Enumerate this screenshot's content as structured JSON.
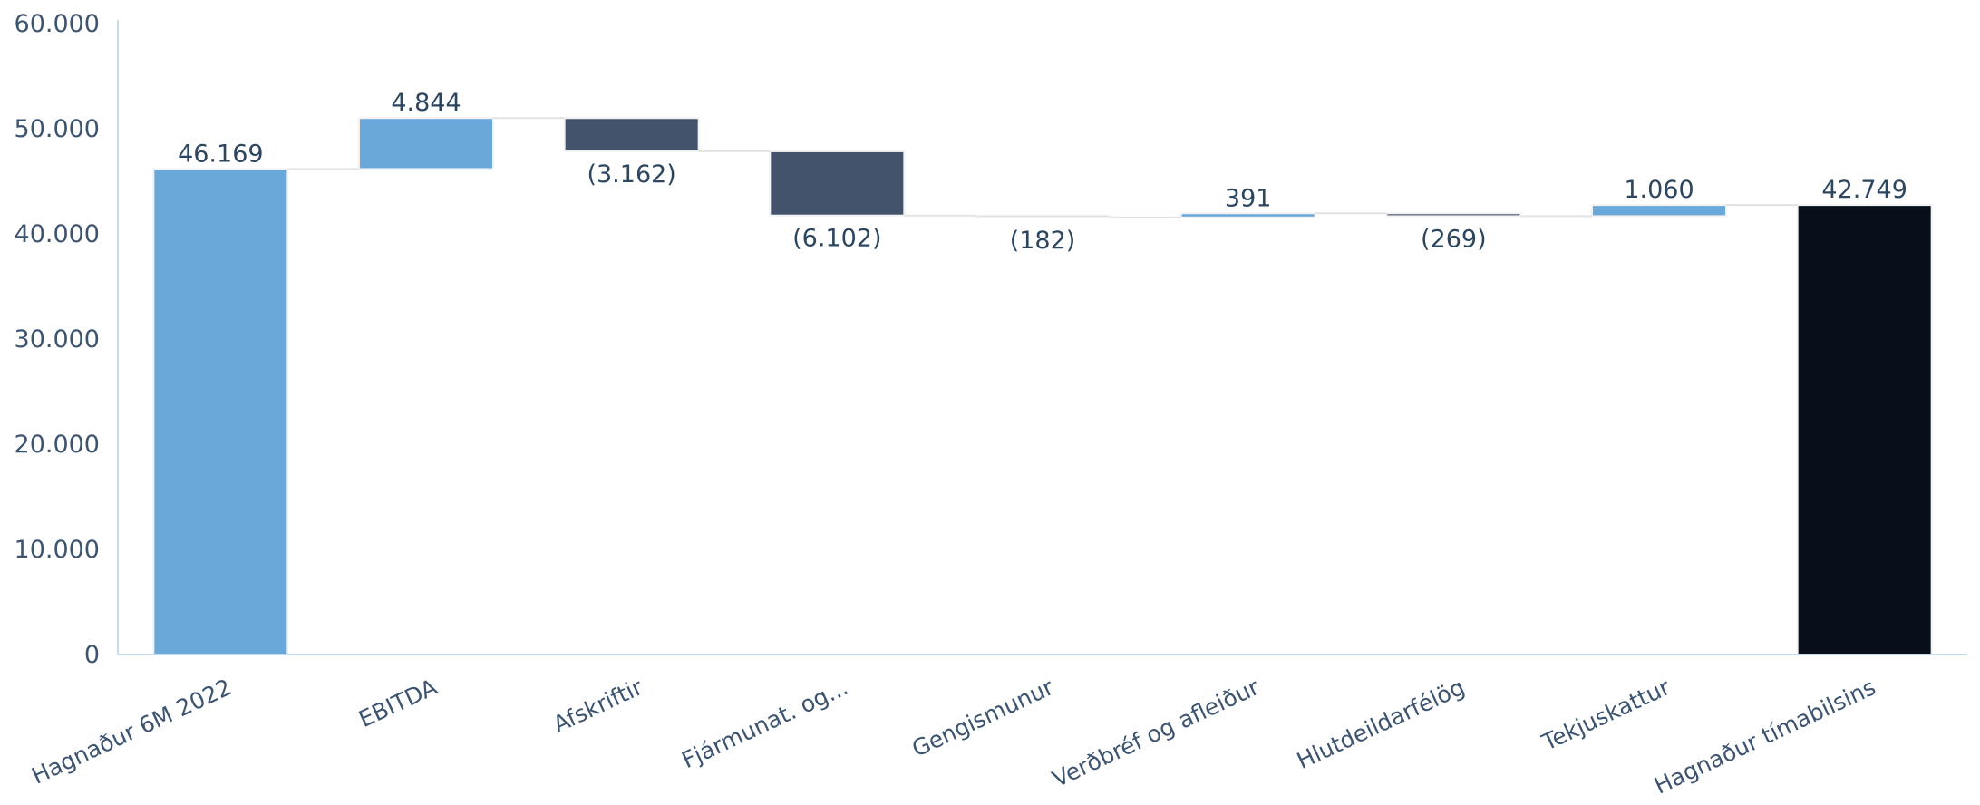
{
  "chart_data": {
    "type": "bar",
    "subtype": "waterfall",
    "title": "",
    "xlabel": "",
    "ylabel": "",
    "ylim": [
      0,
      60000
    ],
    "yticks": [
      0,
      10000,
      20000,
      30000,
      40000,
      50000,
      60000
    ],
    "ytick_labels": [
      "0",
      "10.000",
      "20.000",
      "30.000",
      "40.000",
      "50.000",
      "60.000"
    ],
    "grid": false,
    "legend": "none",
    "categories": [
      "Hagnaður 6M 2022",
      "EBITDA",
      "Afskriftir",
      "Fjármunat. og...",
      "Gengismunur",
      "Verðbréf og afleiður",
      "Hlutdeildarfélög",
      "Tekjuskattur",
      "Hagnaður tímabilsins"
    ],
    "values": [
      46169,
      4844,
      -3162,
      -6102,
      -182,
      391,
      -269,
      1060,
      42749
    ],
    "measures": [
      "total",
      "relative",
      "relative",
      "relative",
      "relative",
      "relative",
      "relative",
      "relative",
      "total"
    ],
    "data_labels": [
      "46.169",
      "4.844",
      "(3.162)",
      "(6.102)",
      "(182)",
      "391",
      "(269)",
      "1.060",
      "42.749"
    ],
    "colors": {
      "total_start": "#6aa8da",
      "increase": "#6aa8da",
      "decrease": "#43536b",
      "total_end": "#07101a",
      "axis": "#c6dcee",
      "connector": "#e2e2e2"
    }
  }
}
